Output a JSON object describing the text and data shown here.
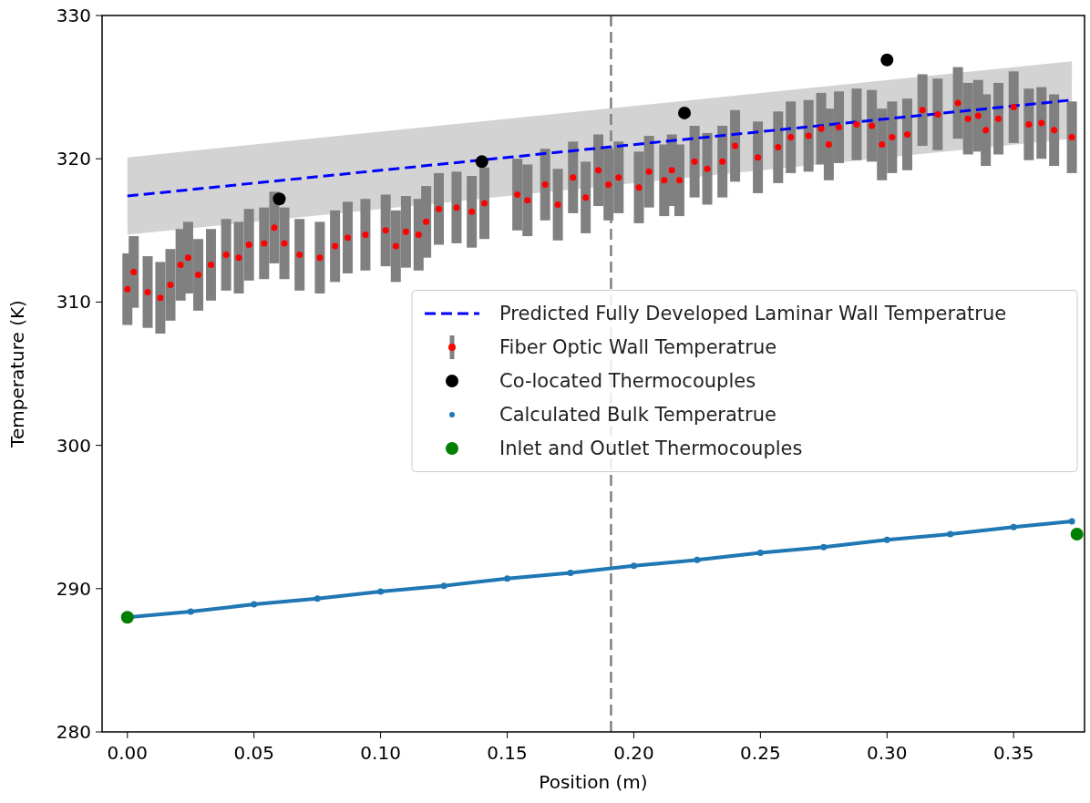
{
  "chart_data": {
    "type": "scatter",
    "xlabel": "Position (m)",
    "ylabel": "Temperature (K)",
    "xlim": [
      -0.01,
      0.378
    ],
    "ylim": [
      280,
      330
    ],
    "xticks": [
      {
        "value": 0,
        "label": "0.00"
      },
      {
        "value": 0.05,
        "label": "0.05"
      },
      {
        "value": 0.1,
        "label": "0.10"
      },
      {
        "value": 0.15,
        "label": "0.15"
      },
      {
        "value": 0.2,
        "label": "0.20"
      },
      {
        "value": 0.25,
        "label": "0.25"
      },
      {
        "value": 0.3,
        "label": "0.30"
      },
      {
        "value": 0.35,
        "label": "0.35"
      }
    ],
    "yticks": [
      280,
      290,
      300,
      310,
      320,
      330
    ],
    "grid": false,
    "legend": "center right",
    "ref_lines": [
      {
        "axis": "x",
        "value": 0.191,
        "color": "#808080",
        "line_style": "dashed"
      }
    ],
    "series": [
      {
        "name": "Predicted Fully Developed Laminar Wall Temperatrue",
        "type": "line",
        "color": "#0000ff",
        "line_style": "dashed",
        "marker": "none",
        "x": [
          0,
          0.373
        ],
        "values": [
          317.4,
          324.1
        ],
        "lower": [
          314.7,
          321.4
        ],
        "upper": [
          320.1,
          326.8
        ]
      },
      {
        "name": "Fiber Optic Wall Temperatrue",
        "color": "#ff0000",
        "marker": "circle",
        "x": [
          0,
          0.0025,
          0.008,
          0.013,
          0.017,
          0.021,
          0.024,
          0.028,
          0.033,
          0.039,
          0.044,
          0.048,
          0.054,
          0.058,
          0.062,
          0.068,
          0.076,
          0.082,
          0.087,
          0.094,
          0.102,
          0.106,
          0.11,
          0.115,
          0.118,
          0.123,
          0.13,
          0.136,
          0.141,
          0.154,
          0.158,
          0.165,
          0.17,
          0.176,
          0.181,
          0.186,
          0.19,
          0.194,
          0.202,
          0.206,
          0.212,
          0.215,
          0.218,
          0.224,
          0.229,
          0.235,
          0.24,
          0.249,
          0.257,
          0.262,
          0.269,
          0.274,
          0.277,
          0.281,
          0.288,
          0.294,
          0.298,
          0.302,
          0.308,
          0.314,
          0.32,
          0.328,
          0.332,
          0.336,
          0.339,
          0.344,
          0.35,
          0.356,
          0.361,
          0.366,
          0.373
        ],
        "values": [
          310.9,
          312.1,
          310.7,
          310.3,
          311.2,
          312.6,
          313.1,
          311.9,
          312.6,
          313.3,
          313.1,
          314.0,
          314.1,
          315.2,
          314.1,
          313.3,
          313.1,
          313.9,
          314.5,
          314.7,
          315.0,
          313.9,
          314.9,
          314.7,
          315.6,
          316.5,
          316.6,
          316.3,
          316.9,
          317.5,
          317.1,
          318.2,
          316.8,
          318.7,
          317.3,
          319.2,
          318.2,
          318.7,
          318.0,
          319.1,
          318.5,
          319.2,
          318.5,
          319.8,
          319.3,
          319.8,
          320.9,
          320.1,
          320.8,
          321.5,
          321.6,
          322.1,
          321.0,
          322.2,
          322.4,
          322.3,
          321.0,
          321.5,
          321.7,
          323.4,
          323.1,
          323.9,
          322.8,
          323.0,
          322.0,
          322.8,
          323.6,
          322.4,
          322.5,
          322.0,
          321.5
        ],
        "errors": [
          2.5,
          2.5,
          2.5,
          2.5,
          2.5,
          2.5,
          2.5,
          2.5,
          2.5,
          2.5,
          2.5,
          2.5,
          2.5,
          2.5,
          2.5,
          2.5,
          2.5,
          2.5,
          2.5,
          2.5,
          2.5,
          2.5,
          2.5,
          2.5,
          2.5,
          2.5,
          2.5,
          2.5,
          2.5,
          2.5,
          2.5,
          2.5,
          2.5,
          2.5,
          2.5,
          2.5,
          2.5,
          2.5,
          2.5,
          2.5,
          2.5,
          2.5,
          2.5,
          2.5,
          2.5,
          2.5,
          2.5,
          2.5,
          2.5,
          2.5,
          2.5,
          2.5,
          2.5,
          2.5,
          2.5,
          2.5,
          2.5,
          2.5,
          2.5,
          2.5,
          2.5,
          2.5,
          2.5,
          2.5,
          2.5,
          2.5,
          2.5,
          2.5,
          2.5,
          2.5,
          2.5
        ]
      },
      {
        "name": "Co-located Thermocouples",
        "color": "#000000",
        "marker": "circle",
        "x": [
          0.06,
          0.14,
          0.22,
          0.3
        ],
        "values": [
          317.2,
          319.8,
          323.2,
          326.9
        ]
      },
      {
        "name": "Calculated Bulk Temperatrue",
        "type": "line",
        "color": "#1f77b4",
        "marker": "circle",
        "x": [
          0,
          0.025,
          0.05,
          0.075,
          0.1,
          0.125,
          0.15,
          0.175,
          0.2,
          0.225,
          0.25,
          0.275,
          0.3,
          0.325,
          0.35,
          0.373
        ],
        "values": [
          288.0,
          288.4,
          288.9,
          289.3,
          289.8,
          290.2,
          290.7,
          291.1,
          291.6,
          292.0,
          292.5,
          292.9,
          293.4,
          293.8,
          294.3,
          294.7
        ]
      },
      {
        "name": "Inlet and Outlet Thermocouples",
        "color": "#008000",
        "marker": "circle",
        "x": [
          0,
          0.375
        ],
        "values": [
          288.0,
          293.8
        ]
      }
    ]
  }
}
